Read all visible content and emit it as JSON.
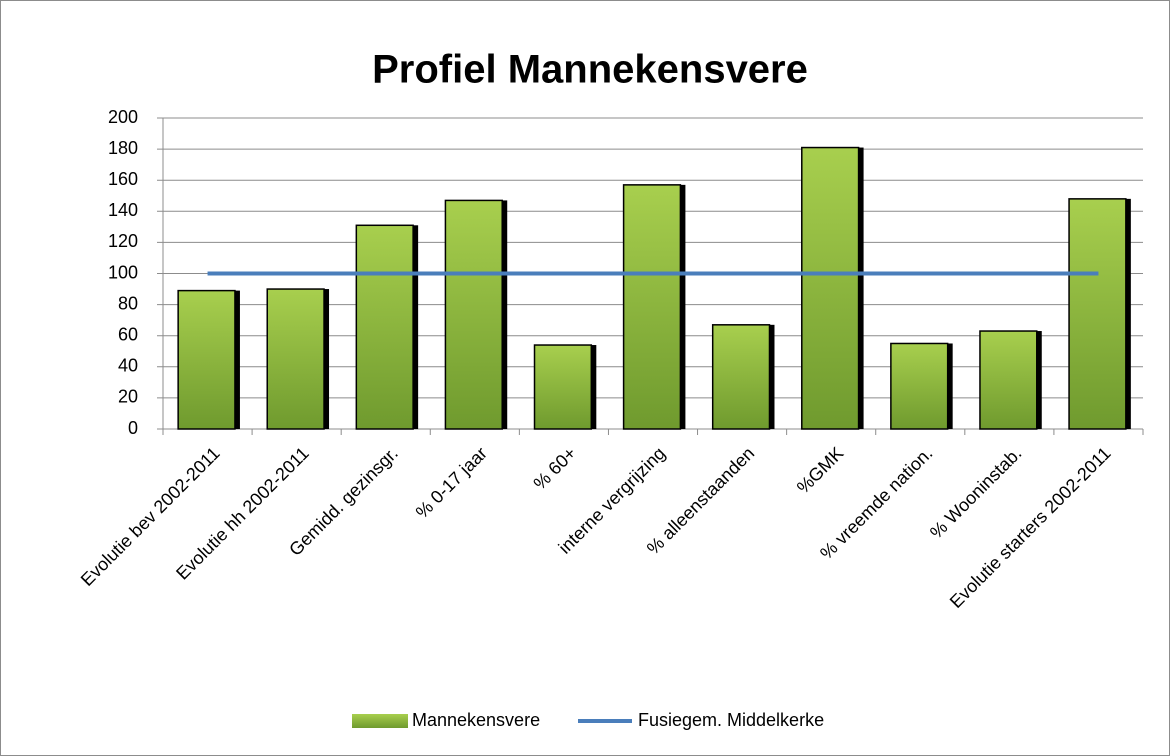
{
  "chart_data": {
    "type": "bar",
    "title": "Profiel Mannekensvere",
    "categories": [
      "Evolutie bev 2002-2011",
      "Evolutie hh 2002-2011",
      "Gemidd. gezinsgr.",
      "% 0-17 jaar",
      "% 60+",
      "interne vergrijzing",
      "% alleenstaanden",
      "%GMK",
      "% vreemde nation.",
      "% Wooninstab.",
      "Evolutie starters 2002-2011"
    ],
    "series": [
      {
        "name": "Mannekensvere",
        "type": "bar",
        "color": "#8db43a",
        "values": [
          89,
          90,
          131,
          147,
          54,
          157,
          67,
          181,
          55,
          63,
          148
        ]
      },
      {
        "name": "Fusiegem. Middelkerke",
        "type": "line",
        "color": "#4a7ebb",
        "values": [
          100,
          100,
          100,
          100,
          100,
          100,
          100,
          100,
          100,
          100,
          100
        ]
      }
    ],
    "ylim": [
      0,
      200
    ],
    "yticks": [
      0,
      20,
      40,
      60,
      80,
      100,
      120,
      140,
      160,
      180,
      200
    ],
    "grid": true,
    "legend": "bottom"
  }
}
